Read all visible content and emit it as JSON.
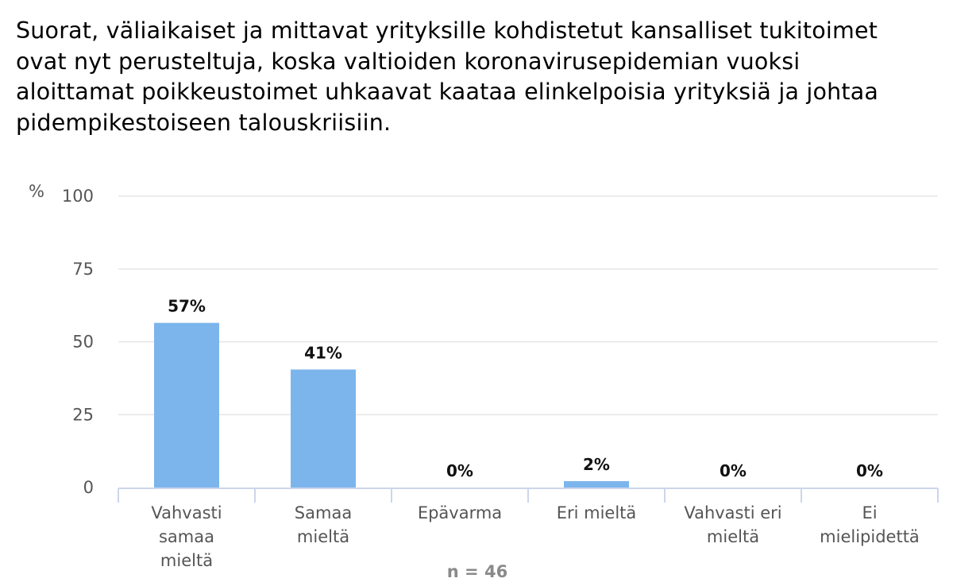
{
  "chart_data": {
    "type": "bar",
    "title": "Suorat, väliaikaiset ja mittavat yrityksille kohdistetut kansalliset tukitoimet ovat nyt perusteltuja, koska valtioiden koronavirusepidemian vuoksi aloittamat poikkeustoimet uhkaavat kaataa elinkelpoisia yrityksiä ja johtaa pidempikestoiseen talouskriisiin.",
    "ylabel": "%",
    "xlabel": "n = 46",
    "ylim": [
      0,
      100
    ],
    "yticks": [
      0,
      25,
      50,
      75,
      100
    ],
    "grid": true,
    "categories": [
      [
        "Vahvasti",
        "samaa",
        "mieltä"
      ],
      [
        "Samaa",
        "mieltä"
      ],
      [
        "Epävarma"
      ],
      [
        "Eri mieltä"
      ],
      [
        "Vahvasti eri",
        "mieltä"
      ],
      [
        "Ei",
        "mielipidettä"
      ]
    ],
    "values": [
      56.5,
      40.5,
      0,
      2.2,
      0,
      0
    ],
    "data_labels": [
      "57%",
      "41%",
      "0%",
      "2%",
      "0%",
      "0%"
    ],
    "bar_color": "#7cb5ec",
    "grid_color": "#e6e6e6",
    "axis_color": "#ccd6eb"
  }
}
